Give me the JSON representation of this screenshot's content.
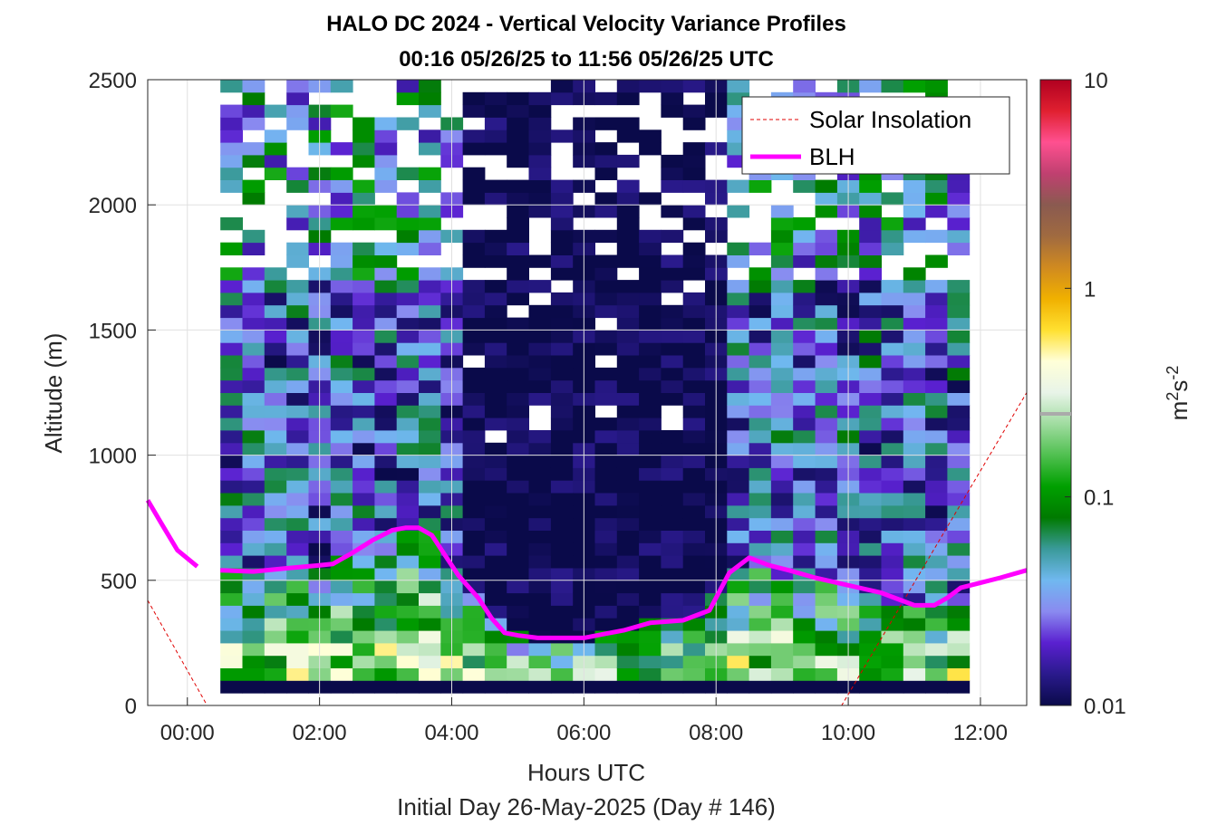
{
  "chart_data": {
    "type": "heatmap",
    "title": "HALO DC 2024 - Vertical Velocity Variance Profiles",
    "subtitle": "00:16 05/26/25 to 11:56 05/26/25  UTC",
    "xlabel": "Hours UTC",
    "xlabel2": "Initial Day 26-May-2025 (Day # 146)",
    "ylabel": "Altitude (m)",
    "xlim": [
      -0.6,
      12.7
    ],
    "ylim": [
      0,
      2500
    ],
    "x_ticks": [
      0,
      2,
      4,
      6,
      8,
      10,
      12
    ],
    "x_tick_labels": [
      "00:00",
      "02:00",
      "04:00",
      "06:00",
      "08:00",
      "10:00",
      "12:00"
    ],
    "y_ticks": [
      0,
      500,
      1000,
      1500,
      2000,
      2500
    ],
    "y_tick_labels": [
      "0",
      "500",
      "1000",
      "1500",
      "2000",
      "2500"
    ],
    "grid": true,
    "colorbar": {
      "label": "m²s⁻²",
      "label_main": "m",
      "label_sup1": "2",
      "label_s": "s",
      "label_sup2": "-2",
      "scale": "log",
      "range": [
        0.01,
        10
      ],
      "ticks": [
        0.01,
        0.1,
        1,
        10
      ],
      "tick_labels": [
        "0.01",
        "0.1",
        "1",
        "10"
      ],
      "colors": [
        "#0a0a4a",
        "#2a1a8c",
        "#5a20d0",
        "#8a8af0",
        "#70b8f0",
        "#3a9a9a",
        "#007a00",
        "#00a000",
        "#50c050",
        "#a0dca0",
        "#e8f4e8",
        "#ffffd8",
        "#ffe030",
        "#f0b000",
        "#d08a20",
        "#a06a40",
        "#8a5a50",
        "#c04070",
        "#ff5090",
        "#e02030",
        "#b00020"
      ],
      "marker_value": 0.25
    },
    "legend": {
      "position": "top-right",
      "entries": [
        {
          "label": "Solar Insolation",
          "color": "#e00000",
          "style": "dashed"
        },
        {
          "label": "BLH",
          "color": "#ff00ff",
          "style": "solid"
        }
      ]
    },
    "series": [
      {
        "name": "BLH",
        "color": "#ff00ff",
        "segments": [
          {
            "x": [
              -0.6,
              -0.4,
              -0.15,
              0.15
            ],
            "y": [
              820,
              730,
              620,
              555
            ]
          },
          {
            "x": [
              0.5,
              1.0,
              1.5,
              2.0,
              2.2,
              2.5,
              2.8,
              3.1,
              3.3,
              3.5,
              3.7,
              3.9,
              4.1,
              4.4,
              4.6,
              4.8,
              5.0,
              5.3,
              5.6,
              6.0,
              6.3,
              6.6,
              7.0,
              7.5,
              7.9,
              8.2,
              8.5,
              8.8,
              9.1,
              9.5,
              10.0,
              10.5,
              11.0,
              11.3,
              11.5,
              11.7,
              12.0,
              12.3,
              12.7
            ],
            "y": [
              540,
              535,
              548,
              560,
              565,
              610,
              660,
              700,
              710,
              710,
              680,
              600,
              520,
              430,
              350,
              290,
              280,
              270,
              270,
              270,
              285,
              300,
              330,
              340,
              380,
              530,
              590,
              560,
              540,
              510,
              480,
              450,
              400,
              400,
              430,
              470,
              490,
              510,
              540
            ]
          }
        ]
      },
      {
        "name": "Solar Insolation",
        "color": "#e00000",
        "x": [
          -0.6,
          0.3,
          9.9,
          12.7
        ],
        "y": [
          420,
          0,
          0,
          1250
        ]
      }
    ],
    "heatmap": {
      "x_start": 0.5,
      "x_step": 0.3333,
      "columns": 34,
      "y_start": 0,
      "y_step": 50,
      "rows": 50,
      "bottom_row_value": 0.01,
      "description_of_field": "log10 variance; low (~0.01-0.03) over 1000-2500 m and mid-day, higher (0.05-0.5) below ~800 m and near 02:00-04:00 and after 08:00"
    }
  }
}
